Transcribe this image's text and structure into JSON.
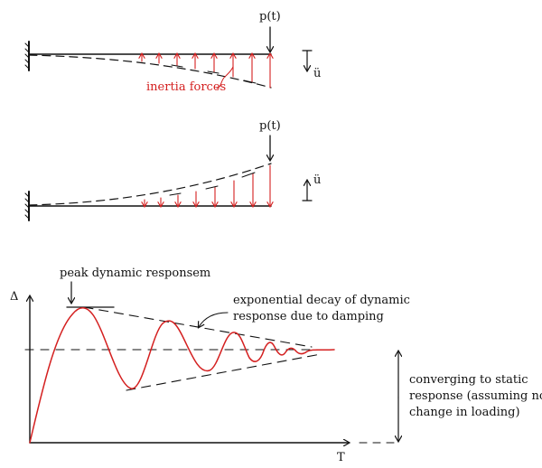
{
  "figure_top": {
    "load_label": "p(t)",
    "accel_label": "ü",
    "inertia_label": "inertia forces"
  },
  "figure_middle": {
    "load_label": "p(t)",
    "accel_label": "ü"
  },
  "response_plot": {
    "y_axis_label": "Δ",
    "x_axis_label": "T",
    "peak_annotation": "peak dynamic responsem",
    "decay_annotation_line1": "exponential decay of dynamic",
    "decay_annotation_line2": "response due to damping",
    "static_annotation_line1": "converging to static",
    "static_annotation_line2": "response (assuming no",
    "static_annotation_line3": "change in loading)"
  },
  "colors": {
    "ink": "#111111",
    "accent_red": "#d42020"
  }
}
